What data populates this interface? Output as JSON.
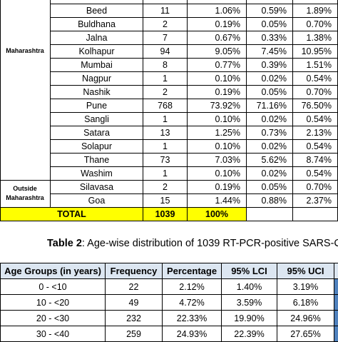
{
  "table1": {
    "groups": [
      {
        "label": "Maharashtra"
      },
      {
        "label": "Outside Maharashtra"
      }
    ],
    "rows": [
      {
        "district": "Beed",
        "frequency": "11",
        "percentage": "1.06%",
        "lci": "0.59%",
        "uci": "1.89%"
      },
      {
        "district": "Buldhana",
        "frequency": "2",
        "percentage": "0.19%",
        "lci": "0.05%",
        "uci": "0.70%"
      },
      {
        "district": "Jalna",
        "frequency": "7",
        "percentage": "0.67%",
        "lci": "0.33%",
        "uci": "1.38%"
      },
      {
        "district": "Kolhapur",
        "frequency": "94",
        "percentage": "9.05%",
        "lci": "7.45%",
        "uci": "10.95%"
      },
      {
        "district": "Mumbai",
        "frequency": "8",
        "percentage": "0.77%",
        "lci": "0.39%",
        "uci": "1.51%"
      },
      {
        "district": "Nagpur",
        "frequency": "1",
        "percentage": "0.10%",
        "lci": "0.02%",
        "uci": "0.54%"
      },
      {
        "district": "Nashik",
        "frequency": "2",
        "percentage": "0.19%",
        "lci": "0.05%",
        "uci": "0.70%"
      },
      {
        "district": "Pune",
        "frequency": "768",
        "percentage": "73.92%",
        "lci": "71.16%",
        "uci": "76.50%"
      },
      {
        "district": "Sangli",
        "frequency": "1",
        "percentage": "0.10%",
        "lci": "0.02%",
        "uci": "0.54%"
      },
      {
        "district": "Satara",
        "frequency": "13",
        "percentage": "1.25%",
        "lci": "0.73%",
        "uci": "2.13%"
      },
      {
        "district": "Solapur",
        "frequency": "1",
        "percentage": "0.10%",
        "lci": "0.02%",
        "uci": "0.54%"
      },
      {
        "district": "Thane",
        "frequency": "73",
        "percentage": "7.03%",
        "lci": "5.62%",
        "uci": "8.74%"
      },
      {
        "district": "Washim",
        "frequency": "1",
        "percentage": "0.10%",
        "lci": "0.02%",
        "uci": "0.54%"
      },
      {
        "district": "Silavasa",
        "frequency": "2",
        "percentage": "0.19%",
        "lci": "0.05%",
        "uci": "0.70%"
      },
      {
        "district": "Goa",
        "frequency": "15",
        "percentage": "1.44%",
        "lci": "0.88%",
        "uci": "2.37%"
      }
    ],
    "total": {
      "label": "TOTAL",
      "frequency": "1039",
      "percentage": "100%"
    }
  },
  "caption": {
    "label": "Table 2",
    "text": ": Age-wise distribution of 1039 RT-PCR-positive SARS-C"
  },
  "table2": {
    "headers": [
      "Age Groups (in years)",
      "Frequency",
      "Percentage",
      "95% LCI",
      "95% UCI"
    ],
    "rows": [
      [
        "0 - <10",
        "22",
        "2.12%",
        "1.40%",
        "3.19%"
      ],
      [
        "10 - <20",
        "49",
        "4.72%",
        "3.59%",
        "6.18%"
      ],
      [
        "20 - <30",
        "232",
        "22.33%",
        "19.90%",
        "24.96%"
      ],
      [
        "30 - <40",
        "259",
        "24.93%",
        "22.39%",
        "27.65%"
      ]
    ]
  }
}
